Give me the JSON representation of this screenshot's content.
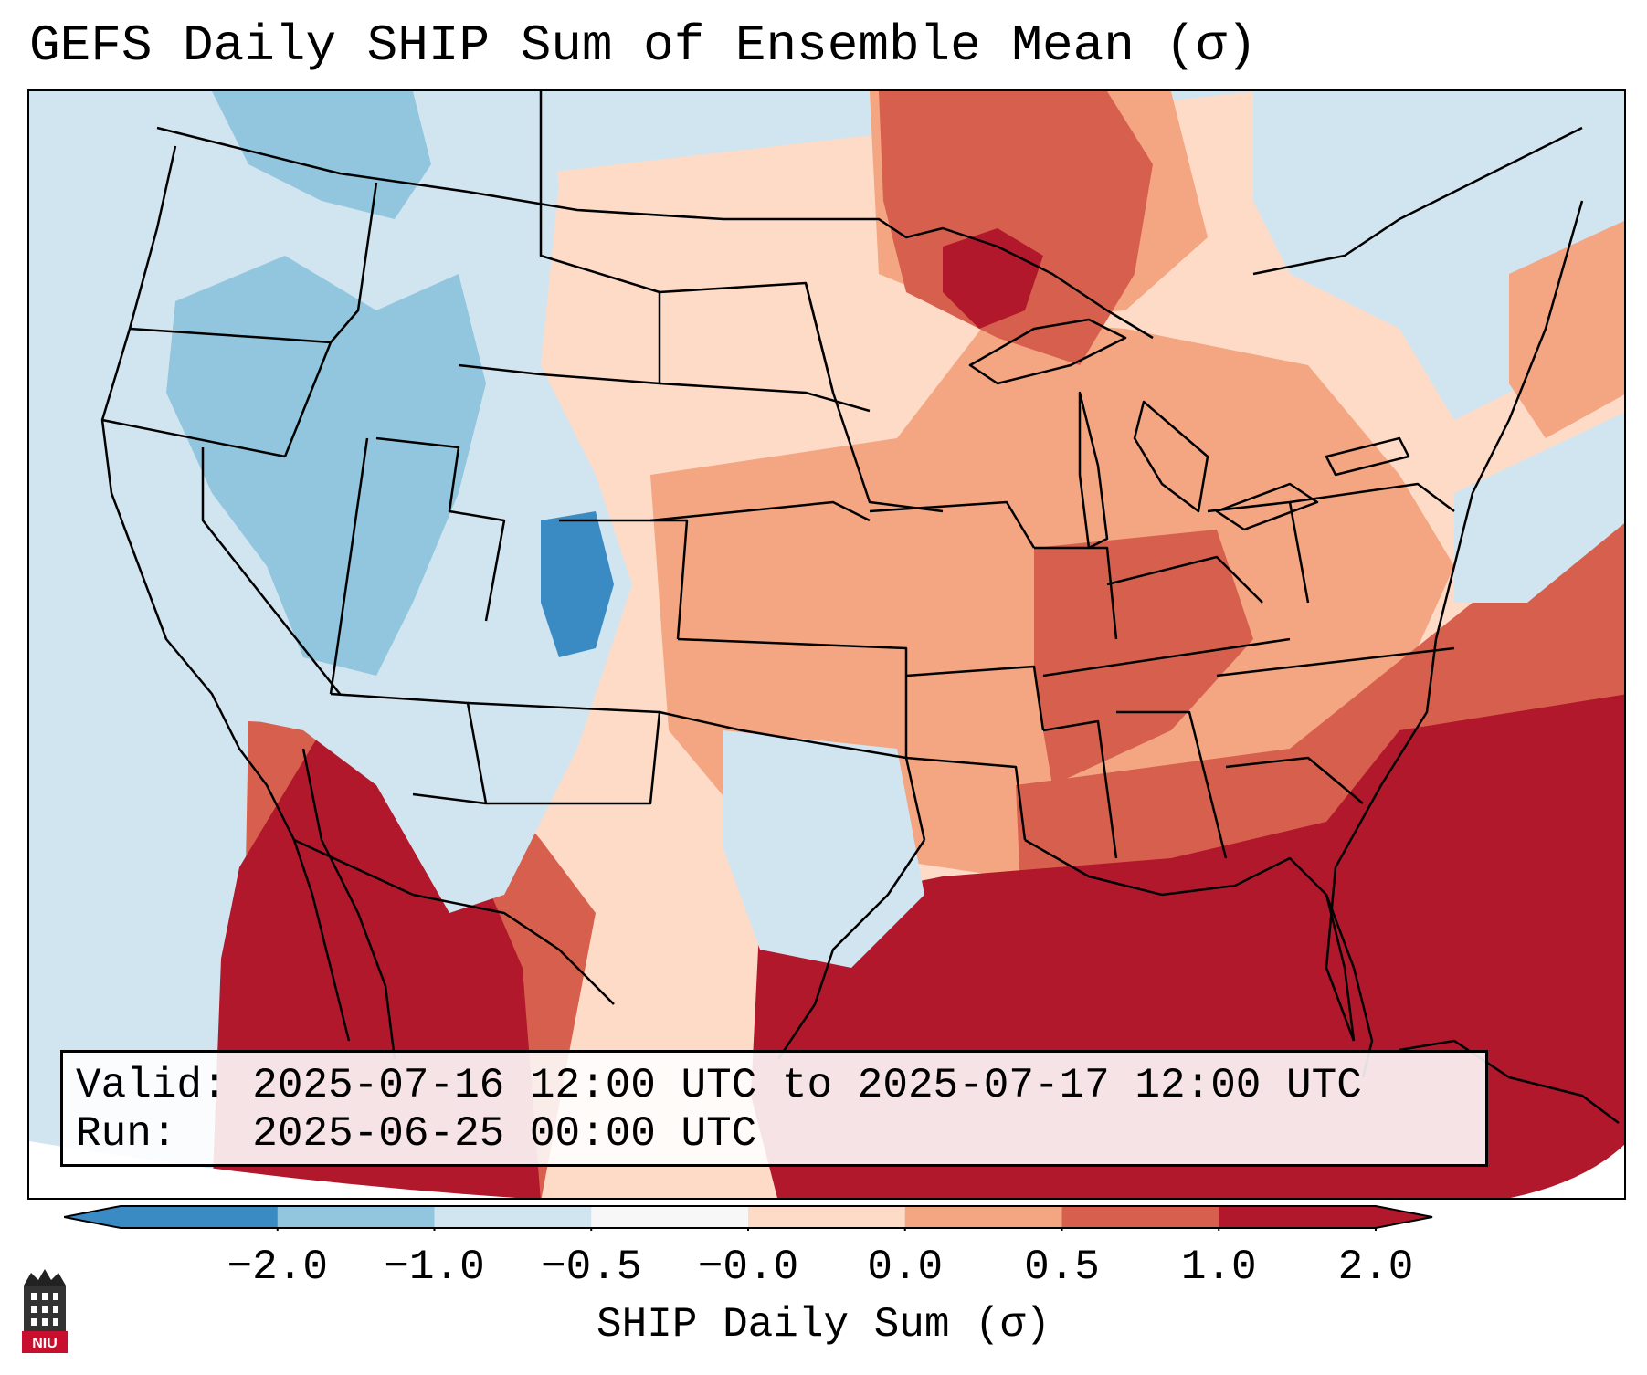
{
  "title": "GEFS Daily SHIP Sum of Ensemble Mean (σ)",
  "info": {
    "valid_line": "Valid: 2025-07-16 12:00 UTC to 2025-07-17 12:00 UTC",
    "run_line": "Run:   2025-06-25 00:00 UTC"
  },
  "colorbar": {
    "label": "SHIP Daily Sum (σ)",
    "ticks": [
      "−2.0",
      "−1.0",
      "−0.5",
      "−0.0",
      "0.0",
      "0.5",
      "1.0",
      "2.0"
    ],
    "colors": [
      "#3a8bc4",
      "#92c5de",
      "#d1e5f0",
      "#f7f7f7",
      "#fddbc7",
      "#f4a582",
      "#d6604d",
      "#b2182b"
    ],
    "extend": "both"
  },
  "map": {
    "region": "Contiguous United States",
    "palette": {
      "ocean": "#d1e5f0",
      "strong_blue": "#3a8bc4",
      "light_blue": "#92c5de",
      "pale_blue": "#d1e5f0",
      "peach": "#fddbc7",
      "salmon": "#f4a582",
      "red": "#d6604d",
      "dark_red": "#b2182b",
      "border": "#000000"
    }
  },
  "logo": {
    "text": "NIU",
    "icon": "university-tower-icon"
  }
}
